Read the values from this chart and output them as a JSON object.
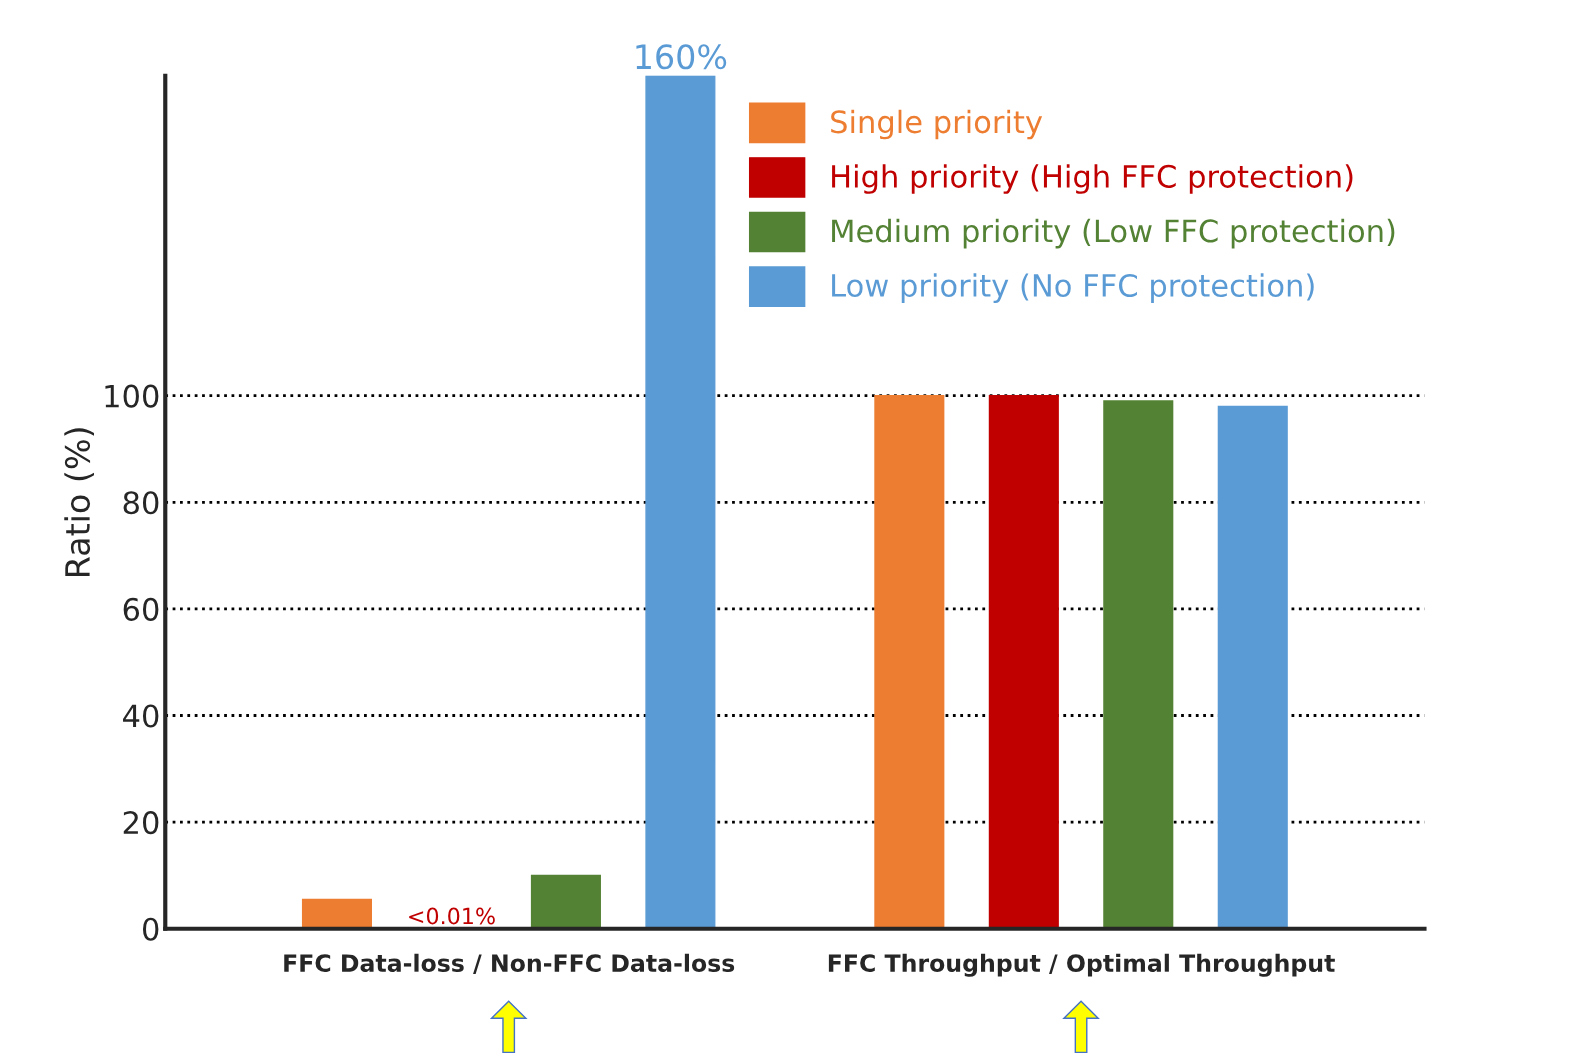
{
  "chart_data": {
    "type": "bar",
    "ylabel": "Ratio (%)",
    "categories": [
      "FFC Data-loss / Non-FFC Data-loss",
      "FFC Throughput / Optimal Throughput"
    ],
    "series": [
      {
        "name": "Single priority",
        "color": "#ed7d31",
        "values": [
          5.5,
          100
        ]
      },
      {
        "name": "High priority (High FFC protection)",
        "color": "#c00000",
        "values": [
          0.01,
          100
        ],
        "value_labels": [
          "<0.01%",
          null
        ]
      },
      {
        "name": "Medium priority (Low FFC protection)",
        "color": "#548235",
        "values": [
          10,
          99
        ]
      },
      {
        "name": "Low priority (No FFC protection)",
        "color": "#5b9bd5",
        "values": [
          160,
          98
        ],
        "value_labels": [
          "160%",
          null
        ]
      }
    ],
    "ylim": [
      0,
      160
    ],
    "yticks": [
      0,
      20,
      40,
      60,
      80,
      100
    ],
    "grid": "y",
    "legend": "top right"
  }
}
